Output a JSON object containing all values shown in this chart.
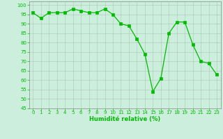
{
  "x": [
    0,
    1,
    2,
    3,
    4,
    5,
    6,
    7,
    8,
    9,
    10,
    11,
    12,
    13,
    14,
    15,
    16,
    17,
    18,
    19,
    20,
    21,
    22,
    23
  ],
  "y": [
    96,
    93,
    96,
    96,
    96,
    98,
    97,
    96,
    96,
    98,
    95,
    90,
    89,
    82,
    74,
    54,
    61,
    85,
    91,
    91,
    79,
    70,
    69,
    63
  ],
  "line_color": "#00bb00",
  "marker_color": "#00bb00",
  "bg_color": "#cceedd",
  "grid_color": "#aabbaa",
  "tick_color": "#00bb00",
  "xlabel": "Humidité relative (%)",
  "xlabel_color": "#00bb00",
  "ylim": [
    45,
    102
  ],
  "xlim": [
    -0.5,
    23.5
  ],
  "yticks": [
    45,
    50,
    55,
    60,
    65,
    70,
    75,
    80,
    85,
    90,
    95,
    100
  ],
  "xticks": [
    0,
    1,
    2,
    3,
    4,
    5,
    6,
    7,
    8,
    9,
    10,
    11,
    12,
    13,
    14,
    15,
    16,
    17,
    18,
    19,
    20,
    21,
    22,
    23
  ],
  "figsize": [
    3.2,
    2.0
  ],
  "dpi": 100
}
